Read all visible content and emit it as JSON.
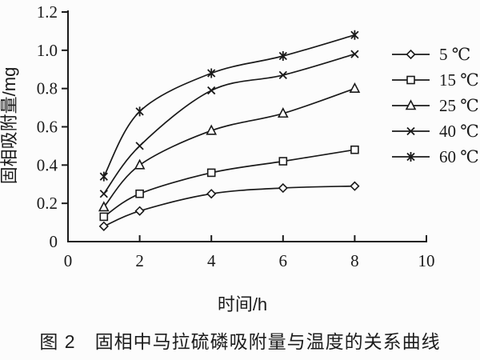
{
  "figure": {
    "caption": "图 2　固相中马拉硫磷吸附量与温度的关系曲线"
  },
  "chart_data": {
    "type": "line",
    "title": "",
    "xlabel": "时间/h",
    "ylabel": "固相吸附量/mg",
    "xlim": [
      0,
      10
    ],
    "ylim": [
      0,
      1.2
    ],
    "x_tick_labels": [
      "0",
      "2",
      "4",
      "6",
      "8",
      "10"
    ],
    "y_tick_labels": [
      "0",
      "0.2",
      "0.4",
      "0.6",
      "0.8",
      "1.0",
      "1.2"
    ],
    "grid": false,
    "legend_position": "right",
    "line_color": "#1a1a1a",
    "marker_fill": "#ffffff",
    "x": [
      1,
      2,
      4,
      6,
      8
    ],
    "series": [
      {
        "name": "5 ℃",
        "marker": "diamond",
        "values": [
          0.08,
          0.16,
          0.25,
          0.28,
          0.29
        ]
      },
      {
        "name": "15 ℃",
        "marker": "square",
        "values": [
          0.13,
          0.25,
          0.36,
          0.42,
          0.48
        ]
      },
      {
        "name": "25 ℃",
        "marker": "triangle",
        "values": [
          0.18,
          0.4,
          0.58,
          0.67,
          0.8
        ]
      },
      {
        "name": "40 ℃",
        "marker": "cross",
        "values": [
          0.25,
          0.5,
          0.79,
          0.87,
          0.98
        ]
      },
      {
        "name": "60 ℃",
        "marker": "asterisk",
        "values": [
          0.34,
          0.68,
          0.88,
          0.97,
          1.08
        ]
      }
    ]
  }
}
